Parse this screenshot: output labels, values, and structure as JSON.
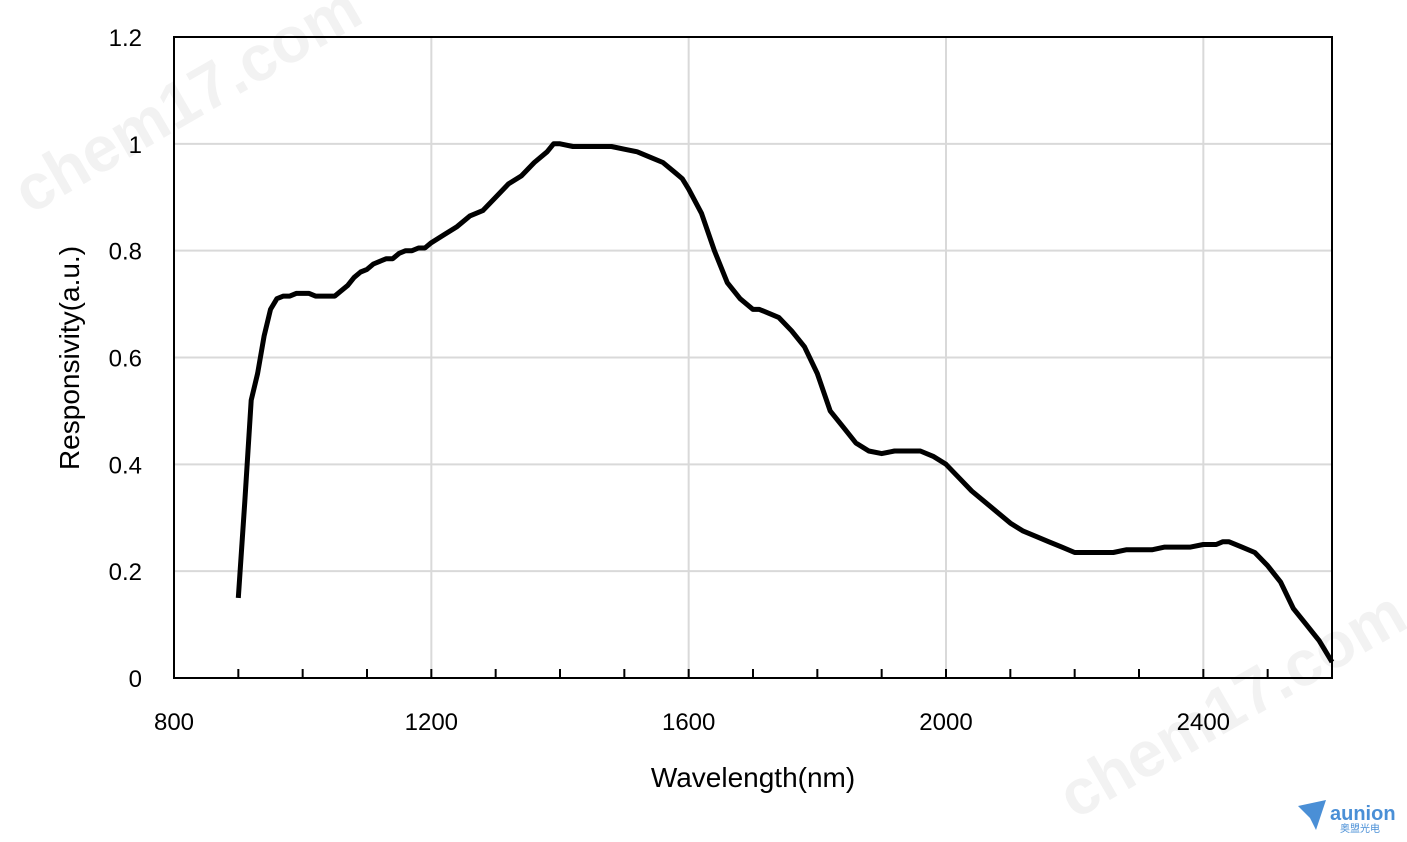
{
  "watermark": {
    "text": "chem17.com"
  },
  "logo": {
    "text": "aunion",
    "subtext": "奥盟光电",
    "color": "#4a8fd6"
  },
  "chart_data": {
    "type": "line",
    "title": "",
    "xlabel": "Wavelength(nm)",
    "ylabel": "Responsivity(a.u.)",
    "xlim": [
      800,
      2600
    ],
    "ylim": [
      0,
      1.2
    ],
    "xticks": [
      800,
      1200,
      1600,
      2000,
      2400
    ],
    "xtick_labels": [
      "800",
      "1200",
      "1600",
      "2000",
      "2400"
    ],
    "yticks": [
      0,
      0.2,
      0.4,
      0.6,
      0.8,
      1,
      1.2
    ],
    "ytick_labels": [
      "0",
      "0.2",
      "0.4",
      "0.6",
      "0.8",
      "1",
      "1.2"
    ],
    "grid": true,
    "line_color": "#000000",
    "series": [
      {
        "x": [
          900,
          910,
          920,
          930,
          940,
          950,
          960,
          970,
          980,
          990,
          1000,
          1010,
          1020,
          1030,
          1040,
          1050,
          1060,
          1070,
          1080,
          1090,
          1100,
          1110,
          1120,
          1130,
          1140,
          1150,
          1160,
          1170,
          1180,
          1190,
          1200,
          1220,
          1240,
          1260,
          1280,
          1300,
          1320,
          1340,
          1360,
          1380,
          1390,
          1400,
          1420,
          1440,
          1460,
          1480,
          1500,
          1520,
          1540,
          1560,
          1580,
          1590,
          1600,
          1620,
          1640,
          1660,
          1680,
          1700,
          1710,
          1720,
          1740,
          1760,
          1780,
          1800,
          1820,
          1840,
          1860,
          1880,
          1900,
          1920,
          1940,
          1960,
          1980,
          2000,
          2020,
          2040,
          2060,
          2080,
          2100,
          2120,
          2140,
          2160,
          2180,
          2200,
          2220,
          2240,
          2260,
          2280,
          2300,
          2320,
          2340,
          2360,
          2380,
          2400,
          2420,
          2430,
          2440,
          2460,
          2480,
          2500,
          2520,
          2540,
          2560,
          2580,
          2590,
          2600
        ],
        "y": [
          0.15,
          0.33,
          0.52,
          0.57,
          0.64,
          0.69,
          0.71,
          0.715,
          0.715,
          0.72,
          0.72,
          0.72,
          0.715,
          0.715,
          0.715,
          0.715,
          0.725,
          0.735,
          0.75,
          0.76,
          0.765,
          0.775,
          0.78,
          0.785,
          0.785,
          0.795,
          0.8,
          0.8,
          0.805,
          0.805,
          0.815,
          0.83,
          0.845,
          0.865,
          0.875,
          0.9,
          0.925,
          0.94,
          0.965,
          0.985,
          1.0,
          1.0,
          0.995,
          0.995,
          0.995,
          0.995,
          0.99,
          0.985,
          0.975,
          0.965,
          0.945,
          0.935,
          0.915,
          0.87,
          0.8,
          0.74,
          0.71,
          0.69,
          0.69,
          0.685,
          0.675,
          0.65,
          0.62,
          0.57,
          0.5,
          0.47,
          0.44,
          0.425,
          0.42,
          0.425,
          0.425,
          0.425,
          0.415,
          0.4,
          0.375,
          0.35,
          0.33,
          0.31,
          0.29,
          0.275,
          0.265,
          0.255,
          0.245,
          0.235,
          0.235,
          0.235,
          0.235,
          0.24,
          0.24,
          0.24,
          0.245,
          0.245,
          0.245,
          0.25,
          0.25,
          0.255,
          0.255,
          0.245,
          0.235,
          0.21,
          0.18,
          0.13,
          0.1,
          0.07,
          0.05,
          0.03
        ]
      }
    ]
  }
}
